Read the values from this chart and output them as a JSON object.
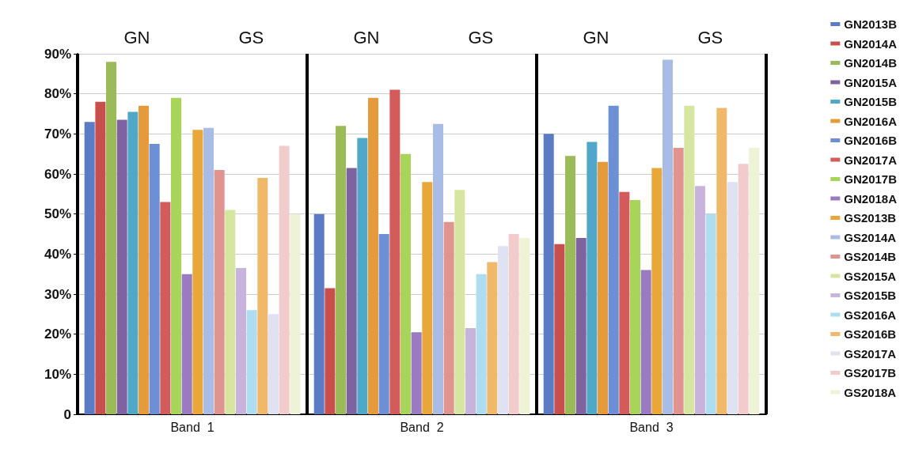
{
  "chart_data": {
    "type": "bar",
    "categories": [
      "Band  1",
      "Band  2",
      "Band  3"
    ],
    "series": [
      {
        "name": "GN2013B",
        "color": "#5b7bc4",
        "values": [
          73,
          50,
          70
        ]
      },
      {
        "name": "GN2014A",
        "color": "#c8504c",
        "values": [
          78,
          31.5,
          42.5
        ]
      },
      {
        "name": "GN2014B",
        "color": "#9bbb59",
        "values": [
          88,
          72,
          64.5
        ]
      },
      {
        "name": "GN2015A",
        "color": "#7f63a0",
        "values": [
          73.5,
          61.5,
          44
        ]
      },
      {
        "name": "GN2015B",
        "color": "#4fa8c8",
        "values": [
          75.5,
          69,
          68
        ]
      },
      {
        "name": "GN2016A",
        "color": "#e59a3c",
        "values": [
          77,
          79,
          63
        ]
      },
      {
        "name": "GN2016B",
        "color": "#6c8fd6",
        "values": [
          67.5,
          45,
          77
        ]
      },
      {
        "name": "GN2017A",
        "color": "#d45b5b",
        "values": [
          53,
          81,
          55.5
        ]
      },
      {
        "name": "GN2017B",
        "color": "#a9d45a",
        "values": [
          79,
          65,
          53.5
        ]
      },
      {
        "name": "GN2018A",
        "color": "#9a7ac0",
        "values": [
          35,
          20.5,
          36
        ]
      },
      {
        "name": "GS2013B",
        "color": "#e9a73a",
        "values": [
          71,
          58,
          61.5
        ]
      },
      {
        "name": "GS2014A",
        "color": "#a9bce6",
        "values": [
          71.5,
          72.5,
          88.5
        ]
      },
      {
        "name": "GS2014B",
        "color": "#e0948f",
        "values": [
          61,
          48,
          66.5
        ]
      },
      {
        "name": "GS2015A",
        "color": "#d6e6a0",
        "values": [
          51,
          56,
          77
        ]
      },
      {
        "name": "GS2015B",
        "color": "#c8b3dc",
        "values": [
          36.5,
          21.5,
          57
        ]
      },
      {
        "name": "GS2016A",
        "color": "#aedcf0",
        "values": [
          26,
          35,
          50
        ]
      },
      {
        "name": "GS2016B",
        "color": "#f0b96a",
        "values": [
          59,
          38,
          76.5
        ]
      },
      {
        "name": "GS2017A",
        "color": "#dfe2f3",
        "values": [
          25,
          42,
          58
        ]
      },
      {
        "name": "GS2017B",
        "color": "#f2cccc",
        "values": [
          67,
          45,
          62.5
        ]
      },
      {
        "name": "GS2018A",
        "color": "#eef2d6",
        "values": [
          50,
          44,
          66.5
        ]
      }
    ],
    "ylim": [
      0,
      90
    ],
    "yticks": [
      0,
      {
        "value": 10,
        "label": "10%"
      },
      {
        "value": 20,
        "label": "20%"
      },
      {
        "value": 30,
        "label": "30%"
      },
      {
        "value": 40,
        "label": "40%"
      },
      {
        "value": 50,
        "label": "50%"
      },
      {
        "value": 60,
        "label": "60%"
      },
      {
        "value": 70,
        "label": "70%"
      },
      {
        "value": 80,
        "label": "80%"
      },
      {
        "value": 90,
        "label": "90%"
      }
    ],
    "grid": "y",
    "legend": "right",
    "annotations": [
      "GN",
      "GS",
      "GN",
      "GS",
      "GN",
      "GS"
    ]
  }
}
